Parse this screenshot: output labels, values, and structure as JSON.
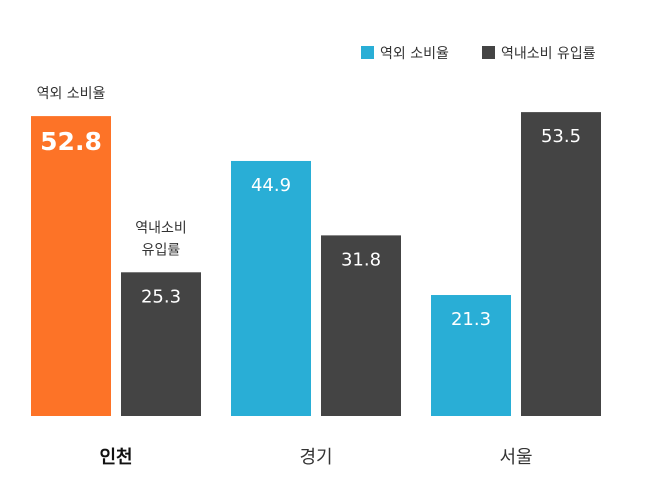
{
  "chart_data": {
    "type": "bar",
    "categories": [
      "인천",
      "경기",
      "서울"
    ],
    "series": [
      {
        "name": "역외 소비율",
        "values": [
          52.8,
          44.9,
          21.3
        ]
      },
      {
        "name": "역내소비 유입률",
        "values": [
          25.3,
          31.8,
          53.5
        ]
      }
    ],
    "ylim": [
      0,
      60
    ],
    "legend_position": "top-right",
    "grid": false,
    "highlight_category": "인천",
    "annotations": [
      {
        "category": "인천",
        "series": "역외 소비율",
        "lines": [
          "역외 소비율"
        ]
      },
      {
        "category": "인천",
        "series": "역내소비 유입률",
        "lines": [
          "역내소비",
          "유입률"
        ]
      }
    ]
  },
  "colors": {
    "outflow": "#29aed6",
    "inflow": "#444444",
    "highlight": "#fd7327"
  }
}
